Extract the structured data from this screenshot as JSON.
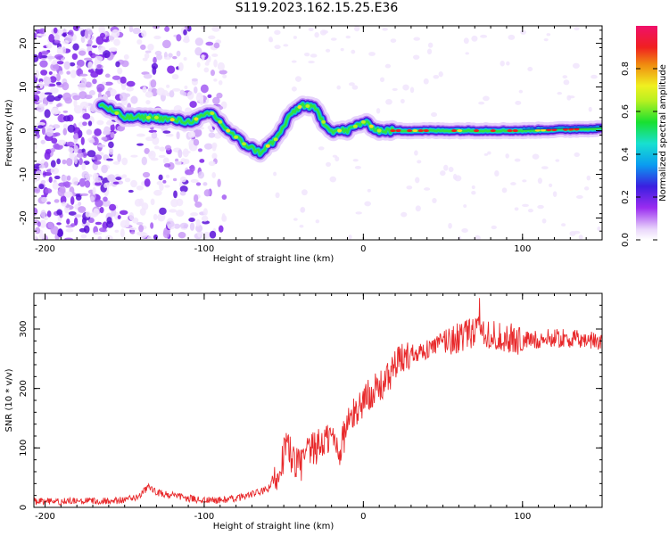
{
  "title": "S119.2023.162.15.25.E36",
  "colors": {
    "snr_line": "#e8292b",
    "axis": "#000000"
  },
  "chart_data": [
    {
      "type": "heatmap",
      "xlabel": "Height of straight line (km)",
      "ylabel": "Frequency (Hz)",
      "xlim": [
        -207,
        150
      ],
      "ylim": [
        -25,
        24
      ],
      "x_ticks": [
        -200,
        -100,
        0,
        100
      ],
      "y_ticks": [
        -20,
        -10,
        0,
        10,
        20
      ],
      "colorbar": {
        "label": "Normalized spectral amplitude",
        "range": [
          0,
          1
        ],
        "ticks": [
          0.0,
          0.2,
          0.4,
          0.6,
          0.8
        ]
      },
      "ridge": {
        "x": [
          -165,
          -150,
          -130,
          -110,
          -95,
          -85,
          -75,
          -65,
          -55,
          -45,
          -38,
          -30,
          -25,
          -20,
          -10,
          0,
          10,
          20,
          50,
          100,
          150
        ],
        "y": [
          6,
          3,
          3,
          2,
          4,
          0,
          -3,
          -5,
          -2,
          4,
          6,
          5,
          2,
          0,
          0,
          2,
          0,
          0,
          0,
          0,
          0.5
        ]
      }
    },
    {
      "type": "line",
      "xlabel": "Height of straight line (km)",
      "ylabel": "SNR (10 * v/v)",
      "xlim": [
        -207,
        150
      ],
      "ylim": [
        0,
        360
      ],
      "x_ticks": [
        -200,
        -100,
        0,
        100
      ],
      "y_ticks": [
        0,
        100,
        200,
        300
      ],
      "series": [
        {
          "x": [
            -207,
            -180,
            -150,
            -140,
            -135,
            -130,
            -120,
            -110,
            -100,
            -90,
            -80,
            -70,
            -60,
            -55,
            -50,
            -48,
            -45,
            -40,
            -35,
            -30,
            -25,
            -20,
            -15,
            -10,
            -5,
            0,
            5,
            10,
            15,
            20,
            25,
            30,
            40,
            50,
            60,
            70,
            75,
            80,
            90,
            100,
            120,
            150
          ],
          "y": [
            10,
            10,
            12,
            20,
            35,
            25,
            20,
            15,
            12,
            12,
            15,
            22,
            30,
            50,
            90,
            110,
            85,
            70,
            90,
            100,
            110,
            120,
            95,
            140,
            160,
            180,
            195,
            200,
            215,
            240,
            250,
            260,
            265,
            280,
            285,
            295,
            300,
            290,
            285,
            280,
            285,
            280
          ]
        }
      ]
    }
  ]
}
